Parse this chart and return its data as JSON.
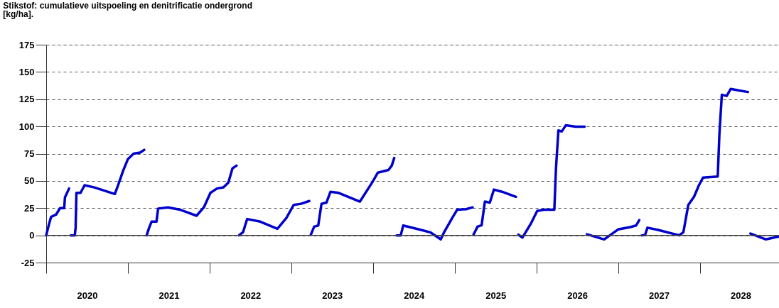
{
  "chart_data": {
    "type": "line",
    "title": "Stikstof: cumulatieve uitspoeling en denitrificatie ondergrond",
    "subtitle": "[kg/ha].",
    "x": [
      2020.0,
      2020.03,
      2020.06,
      2020.12,
      2020.17,
      2020.22,
      2020.23,
      2020.28,
      null,
      2020.3,
      2020.35,
      2020.36,
      2020.37,
      2020.42,
      2020.47,
      2020.59,
      2020.84,
      2020.88,
      2020.94,
      2021.0,
      2021.07,
      2021.15,
      2021.2,
      null,
      2021.23,
      2021.26,
      2021.29,
      2021.35,
      2021.37,
      2021.49,
      2021.64,
      2021.84,
      2021.93,
      2022.01,
      2022.09,
      2022.17,
      2022.23,
      2022.28,
      2022.33,
      null,
      2022.36,
      2022.41,
      2022.46,
      2022.62,
      2022.83,
      2022.94,
      2023.03,
      2023.12,
      2023.22,
      null,
      2023.24,
      2023.28,
      2023.33,
      2023.37,
      2023.43,
      2023.48,
      2023.58,
      2023.84,
      2023.99,
      2024.06,
      2024.19,
      2024.23,
      2024.26,
      null,
      2024.29,
      2024.34,
      2024.37,
      2024.59,
      2024.7,
      2024.83,
      2024.87,
      2024.97,
      2025.03,
      2025.14,
      2025.22,
      null,
      2025.23,
      2025.28,
      2025.33,
      2025.37,
      2025.43,
      2025.48,
      2025.58,
      2025.75,
      null,
      2025.78,
      2025.83,
      2025.93,
      2026.01,
      2026.09,
      2026.22,
      2026.24,
      2026.27,
      2026.31,
      2026.36,
      2026.48,
      2026.59,
      null,
      2026.62,
      2026.83,
      2027.0,
      2027.15,
      2027.22,
      2027.26,
      null,
      2027.29,
      2027.33,
      2027.36,
      2027.49,
      2027.75,
      2027.8,
      2027.86,
      2027.93,
      2027.99,
      2028.04,
      2028.22,
      2028.24,
      2028.27,
      2028.33,
      2028.38,
      2028.48,
      2028.59,
      null,
      2028.62,
      2028.81,
      2028.97
    ],
    "series": [
      {
        "color": "#0000cc",
        "values": [
          0,
          9,
          17,
          19,
          25,
          25,
          35,
          43,
          null,
          0,
          0,
          7,
          39,
          39,
          46,
          44,
          38,
          46,
          59,
          70,
          75,
          76,
          78.5,
          null,
          0,
          7,
          12.6,
          12.6,
          24.6,
          25.7,
          23.5,
          18,
          25.7,
          39,
          43,
          44,
          48.5,
          61.5,
          64,
          null,
          0,
          3,
          15,
          12.6,
          6,
          16,
          28,
          29,
          31.5,
          null,
          0.6,
          8,
          9,
          29,
          30,
          40,
          39,
          31,
          48.5,
          57.6,
          60,
          64,
          71,
          null,
          0,
          0,
          9,
          5,
          2.8,
          -3.7,
          2.8,
          16,
          23.5,
          24,
          25.7,
          null,
          0.6,
          8,
          9.3,
          31,
          30,
          42,
          40,
          35.4,
          null,
          0.6,
          -2,
          10.4,
          22.4,
          23.5,
          23.5,
          61.5,
          96.4,
          95.3,
          101,
          99.7,
          99.7,
          null,
          1,
          -3.7,
          5.4,
          7.6,
          9,
          14,
          null,
          0,
          0.2,
          7,
          5,
          0,
          3,
          28,
          35.4,
          46,
          53,
          54,
          92,
          129,
          128,
          134.5,
          133,
          131.6,
          null,
          1.7,
          -3.7,
          -1
        ]
      }
    ],
    "xlim": [
      2020,
      2028.97
    ],
    "xticks": [
      {
        "value": 2020,
        "label": null
      },
      {
        "value": 2020.5,
        "label": "2020"
      },
      {
        "value": 2021,
        "label": null
      },
      {
        "value": 2021.5,
        "label": "2021"
      },
      {
        "value": 2022,
        "label": null
      },
      {
        "value": 2022.5,
        "label": "2022"
      },
      {
        "value": 2023,
        "label": null
      },
      {
        "value": 2023.5,
        "label": "2023"
      },
      {
        "value": 2024,
        "label": null
      },
      {
        "value": 2024.5,
        "label": "2024"
      },
      {
        "value": 2025,
        "label": null
      },
      {
        "value": 2025.5,
        "label": "2025"
      },
      {
        "value": 2026,
        "label": null
      },
      {
        "value": 2026.5,
        "label": "2026"
      },
      {
        "value": 2027,
        "label": null
      },
      {
        "value": 2027.5,
        "label": "2027"
      },
      {
        "value": 2028,
        "label": null
      },
      {
        "value": 2028.5,
        "label": "2028"
      }
    ],
    "ylim": [
      -25,
      175
    ],
    "yticks": [
      -25,
      0,
      25,
      50,
      75,
      100,
      125,
      150,
      175
    ],
    "grid": "y",
    "marker": "none",
    "line_style": "solid",
    "ref_lines": [
      {
        "axis": "y",
        "value": 0,
        "label": null,
        "color": "#444444"
      }
    ]
  }
}
